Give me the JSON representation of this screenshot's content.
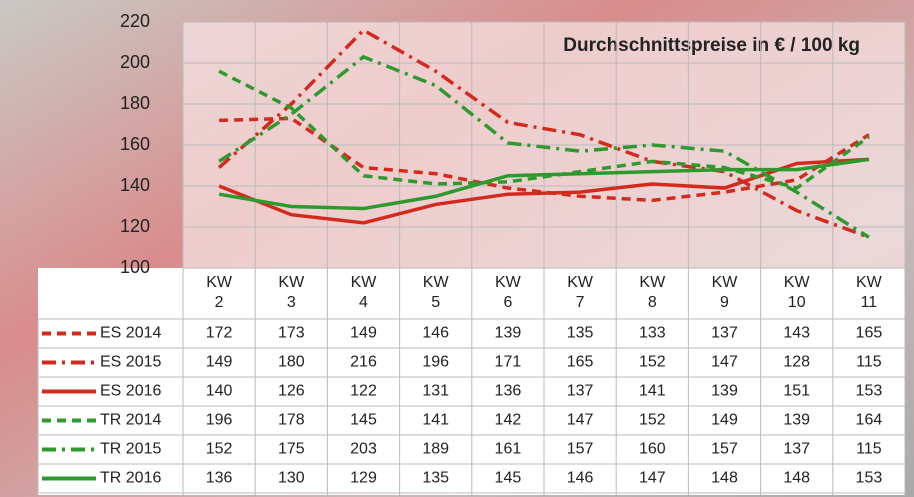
{
  "chart_data": {
    "type": "line",
    "title": "Durchschnittspreise in € / 100 kg",
    "categories": [
      "KW\n2",
      "KW\n3",
      "KW\n4",
      "KW\n5",
      "KW\n6",
      "KW\n7",
      "KW\n8",
      "KW\n9",
      "KW\n10",
      "KW\n11"
    ],
    "ylim": [
      100,
      220
    ],
    "yticks": [
      100,
      120,
      140,
      160,
      180,
      200,
      220
    ],
    "grid": true,
    "series": [
      {
        "name": "ES 2014",
        "color": "#d42a1e",
        "line_style": "dashed",
        "values": [
          172,
          173,
          149,
          146,
          139,
          135,
          133,
          137,
          143,
          165
        ]
      },
      {
        "name": "ES 2015",
        "color": "#d42a1e",
        "line_style": "dashdot",
        "values": [
          149,
          180,
          216,
          196,
          171,
          165,
          152,
          147,
          128,
          115
        ]
      },
      {
        "name": "ES 2016",
        "color": "#d42a1e",
        "line_style": "solid",
        "values": [
          140,
          126,
          122,
          131,
          136,
          137,
          141,
          139,
          151,
          153
        ]
      },
      {
        "name": "TR 2014",
        "color": "#2e9a2e",
        "line_style": "dashed",
        "values": [
          196,
          178,
          145,
          141,
          142,
          147,
          152,
          149,
          139,
          164
        ]
      },
      {
        "name": "TR 2015",
        "color": "#2e9a2e",
        "line_style": "dashdot",
        "values": [
          152,
          175,
          203,
          189,
          161,
          157,
          160,
          157,
          137,
          115
        ]
      },
      {
        "name": "TR 2016",
        "color": "#2e9a2e",
        "line_style": "solid",
        "values": [
          136,
          130,
          129,
          135,
          145,
          146,
          147,
          148,
          148,
          153
        ]
      }
    ]
  }
}
